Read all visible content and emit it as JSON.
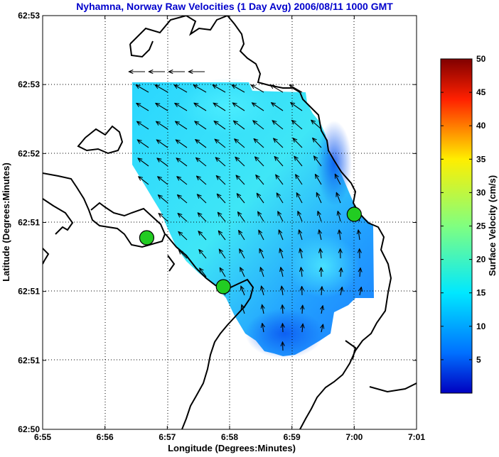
{
  "chart_data": {
    "type": "vector-field",
    "title": "Nyhamna, Norway Raw Velocities (1 Day Avg) 2006/08/11 1000 GMT",
    "xlabel": "Longitude (Degrees:Minutes)",
    "ylabel": "Latitude (Degrees:Minutes)",
    "x_tick_labels": [
      "6:55",
      "6:56",
      "6:57",
      "6:58",
      "6:59",
      "7:00",
      "7:01"
    ],
    "y_tick_labels": [
      "62:53",
      "62:53",
      "62:52",
      "62:51",
      "62:51",
      "62:51",
      "62:50"
    ],
    "xlim_minutes": [
      55,
      61
    ],
    "grid": true,
    "colorbar": {
      "label": "Surface Velocity (cm/s)",
      "range": [
        0,
        50
      ],
      "tick_labels": [
        "5",
        "10",
        "15",
        "20",
        "25",
        "30",
        "35",
        "40",
        "45",
        "50"
      ],
      "colormap": "jet"
    },
    "stations_lon_min": [
      56.67,
      57.9,
      60.0
    ],
    "station_color": "#22cc22",
    "coastline_color": "#000000",
    "title_color": "#0000cc"
  }
}
